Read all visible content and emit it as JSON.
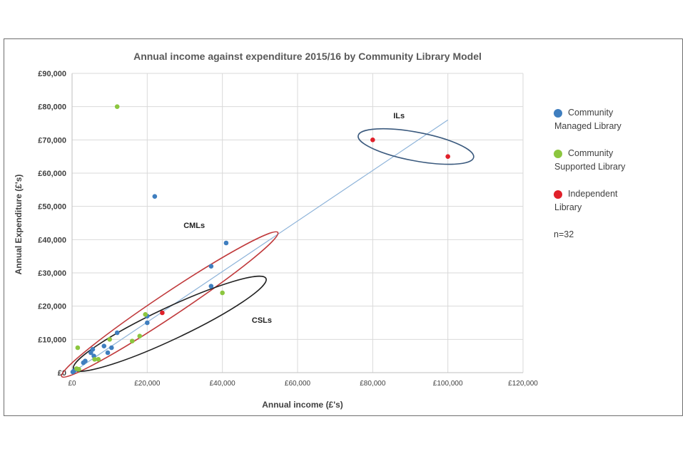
{
  "chart_data": {
    "type": "scatter",
    "title": "Annual income against expenditure 2015/16 by Community Library Model",
    "xlabel": "Annual income (£'s)",
    "ylabel": "Annual Expenditure (£'s)",
    "xlim": [
      0,
      120000
    ],
    "ylim": [
      0,
      90000
    ],
    "x_ticks": [
      {
        "value": 0,
        "label": "£0"
      },
      {
        "value": 20000,
        "label": "£20,000"
      },
      {
        "value": 40000,
        "label": "£40,000"
      },
      {
        "value": 60000,
        "label": "£60,000"
      },
      {
        "value": 80000,
        "label": "£80,000"
      },
      {
        "value": 100000,
        "label": "£100,000"
      },
      {
        "value": 120000,
        "label": "£120,000"
      }
    ],
    "y_ticks": [
      {
        "value": 0,
        "label": "£0"
      },
      {
        "value": 10000,
        "label": "£10,000"
      },
      {
        "value": 20000,
        "label": "£20,000"
      },
      {
        "value": 30000,
        "label": "£30,000"
      },
      {
        "value": 40000,
        "label": "£40,000"
      },
      {
        "value": 50000,
        "label": "£50,000"
      },
      {
        "value": 60000,
        "label": "£60,000"
      },
      {
        "value": 70000,
        "label": "£70,000"
      },
      {
        "value": 80000,
        "label": "£80,000"
      },
      {
        "value": 90000,
        "label": "£90,000"
      }
    ],
    "grid": true,
    "legend_position": "right",
    "series": [
      {
        "name": "Community Managed Library",
        "legend_line1": "Community",
        "legend_line2": "Managed Library",
        "color": "#3f7ebf",
        "points": [
          [
            22000,
            53000
          ],
          [
            41000,
            39000
          ],
          [
            37000,
            32000
          ],
          [
            37000,
            26000
          ],
          [
            20000,
            17000
          ],
          [
            20000,
            15000
          ],
          [
            12000,
            12000
          ],
          [
            8500,
            8000
          ],
          [
            10500,
            7500
          ],
          [
            5500,
            7000
          ],
          [
            5000,
            6000
          ],
          [
            9500,
            6000
          ],
          [
            5800,
            5000
          ],
          [
            3500,
            3500
          ],
          [
            3000,
            3000
          ],
          [
            1000,
            1000
          ],
          [
            500,
            500
          ],
          [
            200,
            200
          ]
        ]
      },
      {
        "name": "Community Supported Library",
        "legend_line1": "Community",
        "legend_line2": "Supported Library",
        "color": "#8cc63f",
        "points": [
          [
            12000,
            80000
          ],
          [
            40000,
            24000
          ],
          [
            19500,
            17500
          ],
          [
            18000,
            11000
          ],
          [
            16000,
            9500
          ],
          [
            10000,
            10000
          ],
          [
            7000,
            4000
          ],
          [
            6000,
            4000
          ],
          [
            1500,
            7500
          ],
          [
            1800,
            1000
          ],
          [
            1200,
            1200
          ]
        ]
      },
      {
        "name": "Independent Library",
        "legend_line1": "Independent",
        "legend_line2": "Library",
        "color": "#e0202a",
        "points": [
          [
            80000,
            70000
          ],
          [
            100000,
            65000
          ],
          [
            24000,
            18000
          ]
        ]
      }
    ],
    "trendline": {
      "x": [
        0,
        100000
      ],
      "y": [
        0,
        76000
      ],
      "color": "#8db3d9"
    },
    "annotations": [
      {
        "text": "ILs",
        "x": 87000,
        "y": 76500
      },
      {
        "text": "CMLs",
        "x": 32500,
        "y": 43500
      },
      {
        "text": "CSLs",
        "x": 50500,
        "y": 15000
      }
    ],
    "groups": [
      {
        "label": "ILs",
        "color": "#3b5a7e",
        "cx": 91500,
        "cy": 68000,
        "rx": 15700,
        "ry": 4300,
        "angle_data": -12
      },
      {
        "label": "CMLs",
        "color": "#c0393b",
        "cx": 26000,
        "cy": 20500,
        "rx": 36000,
        "ry": 3500,
        "angle_data": 37
      },
      {
        "label": "CSLs",
        "color": "#222222",
        "cx": 26000,
        "cy": 14700,
        "rx": 29000,
        "ry": 4800,
        "angle_data": 28
      }
    ],
    "note": "n=32"
  }
}
